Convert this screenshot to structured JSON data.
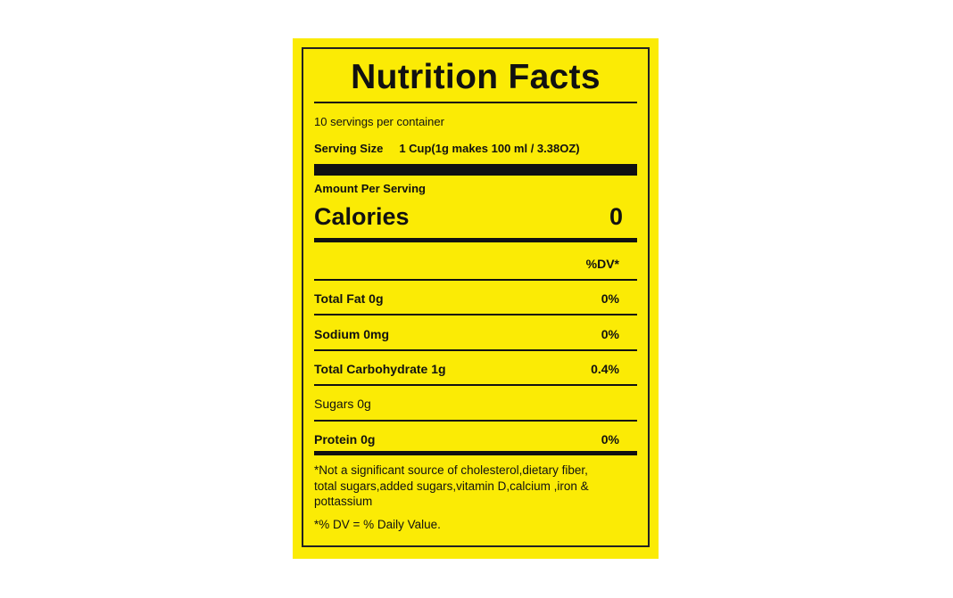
{
  "title": "Nutrition Facts",
  "servings_per_container": "10 servings per container",
  "serving_size_label": "Serving Size",
  "serving_size_value": "1 Cup(1g makes 100 ml / 3.38OZ)",
  "amount_per_serving": "Amount Per Serving",
  "calories_label": "Calories",
  "calories_value": "0",
  "dv_header": "%DV*",
  "nutrients": [
    {
      "label": "Total Fat 0g",
      "dv": "0%"
    },
    {
      "label": "Sodium 0mg",
      "dv": "0%"
    },
    {
      "label": "Total Carbohydrate 1g",
      "dv": "0.4%"
    },
    {
      "label": "Sugars 0g",
      "dv": ""
    },
    {
      "label": "Protein 0g",
      "dv": "0%"
    }
  ],
  "footnote_lines": [
    "*Not a significant source of cholesterol,dietary fiber,",
    "total sugars,added sugars,vitamin D,calcium ,iron &",
    "pottassium"
  ],
  "dv_note": "*% DV = % Daily Value.",
  "colors": {
    "background": "#fbeb05",
    "ink": "#111111"
  }
}
